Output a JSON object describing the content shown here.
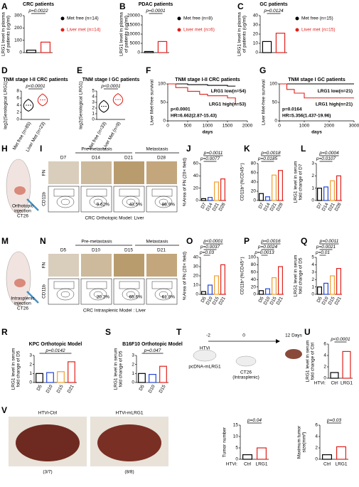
{
  "panels": [
    {
      "letter": "A",
      "kind": "bar",
      "title": "CRC patients",
      "ylabel": [
        "LRG1 level in plasma",
        "of patients (ug/ml)"
      ],
      "ylim": [
        0,
        300
      ],
      "yticks": [
        0,
        100,
        200,
        300
      ],
      "values": [
        20,
        85
      ],
      "colors": [
        "#000000",
        "#e0201b"
      ],
      "legend": [
        "Met free (n=14)",
        "Liver met (n=14)"
      ],
      "pvalues": [
        "p=0.0022"
      ]
    },
    {
      "letter": "B",
      "kind": "bar",
      "title": "PDAC patients",
      "ylabel": [
        "LRG1 level in plasma",
        "of patients (ug/ml)"
      ],
      "ylim": [
        0,
        20000
      ],
      "yticks": [
        0,
        5000,
        10000,
        15000,
        20000
      ],
      "values": [
        600,
        6000
      ],
      "colors": [
        "#000000",
        "#e0201b"
      ],
      "legend": [
        "Met free (n=8)",
        "Liver met (n=6)"
      ],
      "pvalues": [
        "p=0.0001"
      ]
    },
    {
      "letter": "C",
      "kind": "bar",
      "title": "GC patients",
      "ylabel": [
        "LRG1 level in plasma",
        "of patients (ug/ml)"
      ],
      "ylim": [
        0,
        40
      ],
      "yticks": [
        0,
        10,
        20,
        30,
        40
      ],
      "values": [
        12,
        21
      ],
      "colors": [
        "#000000",
        "#e0201b"
      ],
      "legend": [
        "Met free (n=15)",
        "Liver met (n=15)"
      ],
      "pvalues": [
        "p=0.0124"
      ]
    },
    {
      "letter": "D",
      "kind": "violin",
      "title": "TNM stage I-II CRC patients",
      "ylabel": [
        "log2(Serological LRG1)"
      ],
      "ylim": [
        0,
        8
      ],
      "yticks": [
        0,
        2,
        4,
        6,
        8
      ],
      "categories": [
        "Met free (n=85)",
        "Liver Met (n=23)"
      ],
      "values": [
        4,
        5.5
      ],
      "colors": [
        "#000000",
        "#e0201b"
      ],
      "pvalues": [
        "p<0.0001"
      ]
    },
    {
      "letter": "E",
      "kind": "violin",
      "title": "TNM stage I GC patients",
      "ylabel": [
        "log2(Serological LRG1)"
      ],
      "ylim": [
        0,
        5
      ],
      "yticks": [
        0,
        1,
        2,
        3,
        4,
        5
      ],
      "categories": [
        "Met free (n=33)",
        "Liver Met (n=9)"
      ],
      "values": [
        2.3,
        3.5
      ],
      "colors": [
        "#000000",
        "#e0201b"
      ],
      "pvalues": [
        "p<0.0001"
      ]
    },
    {
      "letter": "F",
      "kind": "km",
      "title": "TNM stage I-II CRC patients",
      "ylabel": [
        "Liver Met-free survival"
      ],
      "xlabel": "days",
      "xlim": [
        0,
        2000
      ],
      "xticks": [
        0,
        500,
        1000,
        1500,
        2000
      ],
      "ylim": [
        0,
        100
      ],
      "yticks": [
        0,
        50,
        100
      ],
      "series": [
        {
          "name": "LRG1 low(n=54)",
          "color": "#000000",
          "x": [
            0,
            500,
            1000,
            1500,
            1700
          ],
          "values": [
            100,
            98,
            96,
            94,
            94
          ]
        },
        {
          "name": "LRG1 high(n=53)",
          "color": "#e0201b",
          "x": [
            0,
            200,
            500,
            800,
            1000,
            1500,
            1700
          ],
          "values": [
            100,
            90,
            80,
            72,
            68,
            62,
            45
          ]
        }
      ],
      "annotations": [
        "p<0.0001",
        "HR=6.662(2.87-15.43)"
      ]
    },
    {
      "letter": "G",
      "kind": "km",
      "title": "TNM stage I GC patients",
      "ylabel": [
        "Liver Met-free survival"
      ],
      "xlabel": "days",
      "xlim": [
        0,
        3000
      ],
      "xticks": [
        0,
        1000,
        2000,
        3000
      ],
      "ylim": [
        0,
        100
      ],
      "yticks": [
        0,
        50,
        100
      ],
      "series": [
        {
          "name": "LRG1 low(n=21)",
          "color": "#000000",
          "x": [
            0,
            3000
          ],
          "values": [
            100,
            100
          ]
        },
        {
          "name": "LRG1 high(n=21)",
          "color": "#e0201b",
          "x": [
            0,
            300,
            600,
            1000,
            3000
          ],
          "values": [
            100,
            85,
            75,
            62,
            62
          ]
        }
      ],
      "annotations": [
        "p=0.0164",
        "HR=5.356(1.437-19.96)"
      ]
    },
    {
      "letter": "H",
      "kind": "mouse",
      "texts": [
        "Orthotopic",
        "injection",
        "CT26"
      ]
    },
    {
      "letter": "I",
      "kind": "micro",
      "headers": [
        "Pre-metastasis",
        "Metastasis"
      ],
      "days": [
        "D7",
        "D14",
        "D21",
        "D28"
      ],
      "rows": [
        "FN",
        "CD11b"
      ],
      "gates": [
        "9.62%",
        "43.5%",
        "86.9%"
      ],
      "caption": "CRC Orthotopic Model: Liver"
    },
    {
      "letter": "J",
      "kind": "bar",
      "ylabel": [
        "%Area of FN (20× field)"
      ],
      "ylim": [
        0,
        60
      ],
      "yticks": [
        0,
        20,
        40,
        60
      ],
      "categories": [
        "D7",
        "D14",
        "D21",
        "D28"
      ],
      "values": [
        3,
        5,
        30,
        35
      ],
      "colors": [
        "#000000",
        "#2446d8",
        "#f0a030",
        "#e0201b"
      ],
      "pvalues": [
        "p=0.0011",
        "p=0.0077"
      ]
    },
    {
      "letter": "K",
      "kind": "bar",
      "ylabel": [
        "CD11b⁺(%CD45⁺)"
      ],
      "ylim": [
        0,
        80
      ],
      "yticks": [
        0,
        20,
        40,
        60,
        80
      ],
      "categories": [
        "D7",
        "D14",
        "D21",
        "D28"
      ],
      "values": [
        15,
        8,
        55,
        65
      ],
      "colors": [
        "#000000",
        "#2446d8",
        "#f0a030",
        "#e0201b"
      ],
      "pvalues": [
        "p=0.0018",
        "p=0.0185"
      ]
    },
    {
      "letter": "L",
      "kind": "bar",
      "ylabel": [
        "LRG1 level in serum",
        "fold change of D7"
      ],
      "ylim": [
        0,
        3
      ],
      "yticks": [
        0,
        1,
        2,
        3
      ],
      "categories": [
        "D7",
        "D14",
        "D21",
        "D28"
      ],
      "values": [
        1,
        1.1,
        1.6,
        2
      ],
      "colors": [
        "#000000",
        "#2446d8",
        "#f0a030",
        "#e0201b"
      ],
      "pvalues": [
        "p=0.0004",
        "p=0.0107"
      ]
    },
    {
      "letter": "M",
      "kind": "mouse",
      "texts": [
        "Intrasplenic",
        "injection",
        "CT26"
      ]
    },
    {
      "letter": "N",
      "kind": "micro",
      "headers": [
        "Pre-metastasis",
        "Metastasis"
      ],
      "days": [
        "D5",
        "D10",
        "D15",
        "D21"
      ],
      "rows": [
        "FN",
        "CD11b"
      ],
      "gates": [
        "20.3%",
        "65.6%",
        "61.8%"
      ],
      "caption": "CRC Intrasplenic Model : Liver"
    },
    {
      "letter": "O",
      "kind": "bar",
      "ylabel": [
        "%Area of FN (20× field)"
      ],
      "ylim": [
        0,
        40
      ],
      "yticks": [
        0,
        10,
        20,
        30,
        40
      ],
      "categories": [
        "D5",
        "D10",
        "D15",
        "D21"
      ],
      "values": [
        3,
        10,
        20,
        32
      ],
      "colors": [
        "#000000",
        "#2446d8",
        "#f0a030",
        "#e0201b"
      ],
      "pvalues": [
        "p<0.0001",
        "p=0.0037",
        "p=0.03"
      ]
    },
    {
      "letter": "P",
      "kind": "bar",
      "ylabel": [
        "CD11b⁺(%CD45⁺)"
      ],
      "ylim": [
        0,
        100
      ],
      "yticks": [
        0,
        20,
        40,
        60,
        80,
        100
      ],
      "categories": [
        "D5",
        "D10",
        "D15",
        "D21"
      ],
      "values": [
        10,
        15,
        45,
        75
      ],
      "colors": [
        "#000000",
        "#2446d8",
        "#f0a030",
        "#e0201b"
      ],
      "pvalues": [
        "p=0.0016",
        "p=0.0024",
        "p=0.0013"
      ]
    },
    {
      "letter": "Q",
      "kind": "bar",
      "ylabel": [
        "LRG1 level in serum",
        "fold change of D5"
      ],
      "ylim": [
        0,
        5
      ],
      "yticks": [
        0,
        1,
        2,
        3,
        4,
        5
      ],
      "categories": [
        "D5",
        "D10",
        "D15",
        "D21"
      ],
      "values": [
        1,
        1.5,
        2.5,
        3.5
      ],
      "colors": [
        "#000000",
        "#2446d8",
        "#f0a030",
        "#e0201b"
      ],
      "pvalues": [
        "p=0.0011",
        "p=0.0021",
        "p=0.01"
      ]
    },
    {
      "letter": "R",
      "kind": "bar",
      "title": "KPC Orthotopic Model",
      "ylabel": [
        "LRG1 level in serum",
        "fold change of D5"
      ],
      "ylim": [
        0,
        3
      ],
      "yticks": [
        0,
        1,
        2,
        3
      ],
      "categories": [
        "D5",
        "D10",
        "D15",
        "D21"
      ],
      "values": [
        1,
        1.1,
        1.2,
        2.3
      ],
      "colors": [
        "#000000",
        "#2446d8",
        "#f0a030",
        "#e0201b"
      ],
      "pvalues": [
        "p=0.0142"
      ]
    },
    {
      "letter": "S",
      "kind": "bar",
      "title": "B16F10 Orthotopic Model",
      "ylabel": [
        "LRG1 level in serum",
        "fold change of D5"
      ],
      "ylim": [
        0,
        3
      ],
      "yticks": [
        0,
        1,
        2,
        3
      ],
      "categories": [
        "D5",
        "D10",
        "D15"
      ],
      "values": [
        1,
        0.9,
        1.8
      ],
      "colors": [
        "#000000",
        "#2446d8",
        "#e0201b"
      ],
      "pvalues": [
        "p=0.047"
      ]
    },
    {
      "letter": "T",
      "kind": "scheme",
      "times": [
        "-2",
        "0",
        "12 Days"
      ],
      "texts": [
        "HTVi",
        "pcDNA-mLRG1",
        "CT26",
        "(Intrasplenic)"
      ]
    },
    {
      "letter": "U",
      "kind": "bar",
      "ylabel": [
        "LRG1 level in serum",
        "fold change of Ctrl"
      ],
      "ylim": [
        0,
        6
      ],
      "yticks": [
        0,
        2,
        4,
        6
      ],
      "group_label": "HTVi:",
      "categories": [
        "Ctrl",
        "LRG1"
      ],
      "values": [
        1,
        4.7
      ],
      "colors": [
        "#000000",
        "#e0201b"
      ],
      "pvalues": [
        "p<0.0001"
      ]
    },
    {
      "letter": "V",
      "kind": "liver",
      "labels": [
        "HTVi-Ctrl",
        "HTVi-mLRG1"
      ],
      "counts": [
        "(3/7)",
        "(8/8)"
      ]
    },
    {
      "kind": "bar",
      "ylabel": [
        "Tumor number"
      ],
      "ylim": [
        0,
        15
      ],
      "yticks": [
        0,
        5,
        10,
        15
      ],
      "group_label": "HTVi:",
      "categories": [
        "Ctrl",
        "LRG1"
      ],
      "values": [
        2,
        5
      ],
      "colors": [
        "#000000",
        "#e0201b"
      ],
      "pvalues": [
        "p=0.04"
      ]
    },
    {
      "kind": "bar",
      "ylabel": [
        "Maximum tumor",
        "size(mm³)"
      ],
      "ylim": [
        0,
        6
      ],
      "yticks": [
        0,
        2,
        4,
        6
      ],
      "categories": [
        "Ctrl",
        "LRG1"
      ],
      "values": [
        0.8,
        2.2
      ],
      "colors": [
        "#000000",
        "#e0201b"
      ],
      "pvalues": [
        "p=0.03"
      ]
    }
  ]
}
